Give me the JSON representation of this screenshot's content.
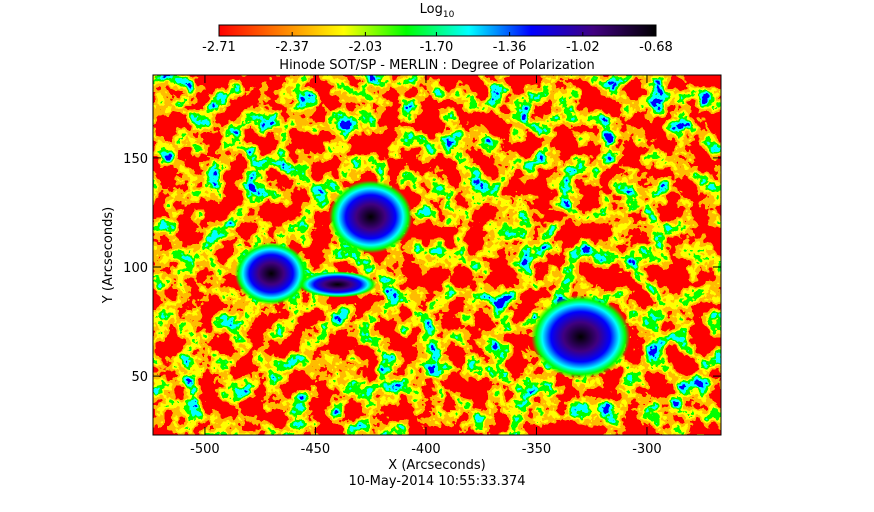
{
  "chart_data": {
    "type": "image",
    "title": "Hinode SOT/SP - MERLIN : Degree of Polarization",
    "date": "10-May-2014 10:55:33.374",
    "xlabel": "X (Arcseconds)",
    "ylabel": "Y (Arcseconds)",
    "xlim": [
      -523.5,
      -266.5
    ],
    "xticks": [
      -500,
      -450,
      -400,
      -350,
      -300
    ],
    "ylim": [
      23,
      188
    ],
    "yticks": [
      50,
      100,
      150
    ],
    "colorbar": {
      "label": "Log",
      "label_subscript": "10",
      "lim": [
        -2.71,
        -0.68
      ],
      "ticks": [
        -2.71,
        -2.37,
        -2.03,
        {
          "value": -1.7,
          "label": "-1.70"
        },
        -1.36,
        -1.02,
        -0.68
      ],
      "colors": [
        "#ff0000",
        "#ff8000",
        "#ffff00",
        "#00ff00",
        "#00ffff",
        "#0000ff",
        "#400080",
        "#000000"
      ]
    }
  }
}
